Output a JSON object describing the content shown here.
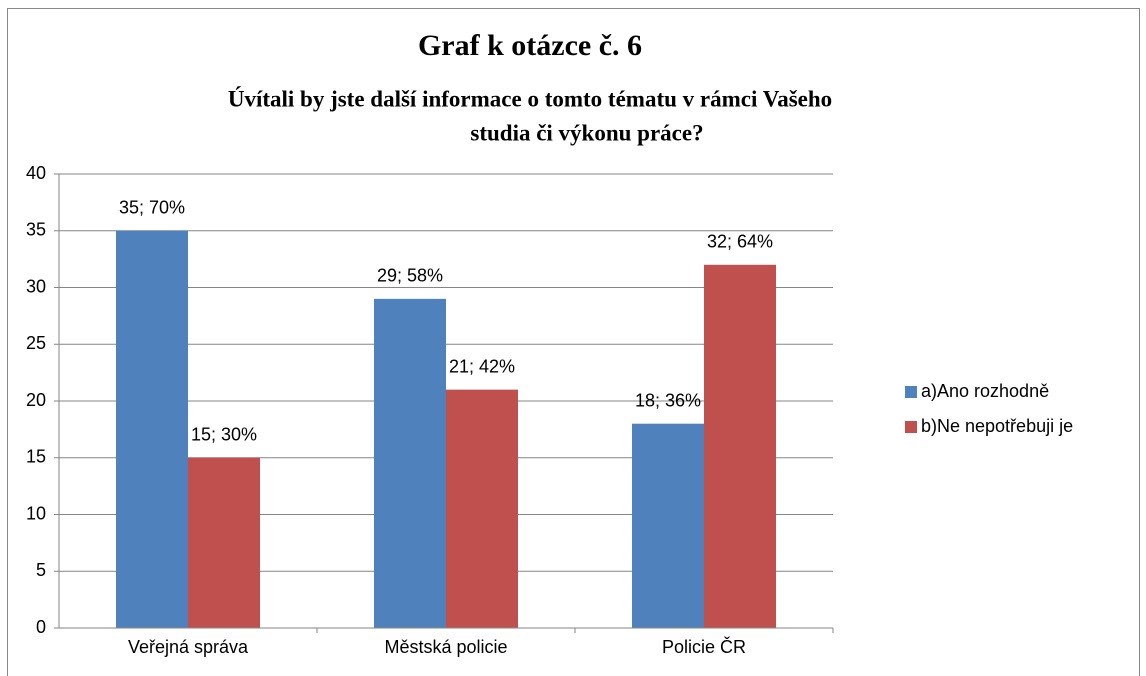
{
  "chart_data": {
    "type": "bar",
    "title": "Graf k otázce č. 6",
    "subtitle": [
      "Úvítali by jste další informace o tomto tématu v rámci Vašeho",
      "studia či výkonu práce?"
    ],
    "categories": [
      "Veřejná správa",
      "Městská policie",
      "Policie ČR"
    ],
    "series": [
      {
        "name": "a)Ano rozhodně",
        "color": "#4f81bd",
        "values": [
          35,
          29,
          18
        ],
        "value_labels": [
          "35; 70%",
          "29; 58%",
          "18; 36%"
        ]
      },
      {
        "name": "b)Ne nepotřebuji je",
        "color": "#c0504d",
        "values": [
          15,
          21,
          32
        ],
        "value_labels": [
          "15; 30%",
          "21; 42%",
          "32; 64%"
        ]
      }
    ],
    "ylim": [
      0,
      40
    ],
    "yticks": [
      0,
      5,
      10,
      15,
      20,
      25,
      30,
      35,
      40
    ],
    "grid": true,
    "legend": "right"
  }
}
